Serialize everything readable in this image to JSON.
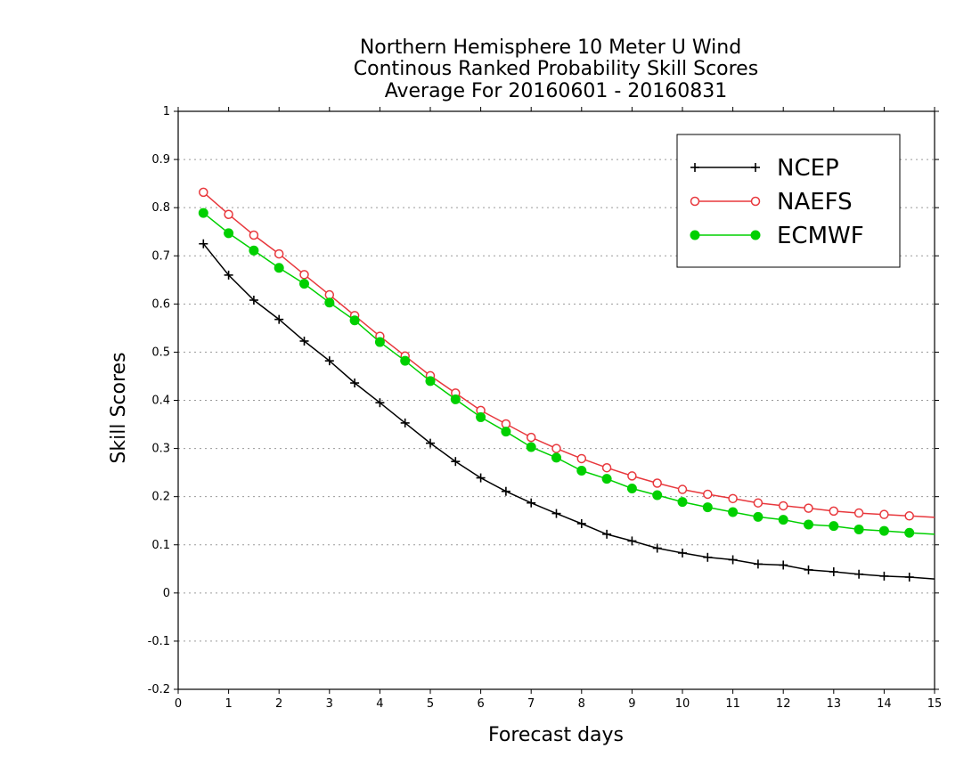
{
  "chart_data": {
    "type": "line",
    "title": [
      "Northern Hemisphere 10 Meter U Wind",
      "Continous Ranked Probability Skill Scores",
      "Average For 20160601 - 20160831"
    ],
    "xlabel": "Forecast days",
    "ylabel": "Skill Scores",
    "xlim": [
      0,
      15
    ],
    "ylim": [
      -0.2,
      1
    ],
    "xticks": [
      0,
      1,
      2,
      3,
      4,
      5,
      6,
      7,
      8,
      9,
      10,
      11,
      12,
      13,
      14,
      15
    ],
    "xtick_labels": [
      "0",
      "1",
      "2",
      "3",
      "4",
      "5",
      "6",
      "7",
      "8",
      "9",
      "10",
      "11",
      "12",
      "13",
      "14",
      "15"
    ],
    "yticks": [
      -0.2,
      -0.1,
      0,
      0.1,
      0.2,
      0.3,
      0.4,
      0.5,
      0.6,
      0.7,
      0.8,
      0.9,
      1
    ],
    "ytick_labels": [
      "-0.2",
      "-0.1",
      "0",
      "0.1",
      "0.2",
      "0.3",
      "0.4",
      "0.5",
      "0.6",
      "0.7",
      "0.8",
      "0.9",
      "1"
    ],
    "grid": "horizontal dotted",
    "legend_position": "top-right",
    "x": [
      0.5,
      1,
      1.5,
      2,
      2.5,
      3,
      3.5,
      4,
      4.5,
      5,
      5.5,
      6,
      6.5,
      7,
      7.5,
      8,
      8.5,
      9,
      9.5,
      10,
      10.5,
      11,
      11.5,
      12,
      12.5,
      13,
      13.5,
      14,
      14.5,
      15
    ],
    "series": [
      {
        "name": "NCEP",
        "color": "#000000",
        "marker": "plus",
        "values": [
          0.725,
          0.66,
          0.608,
          0.568,
          0.523,
          0.482,
          0.436,
          0.395,
          0.353,
          0.311,
          0.273,
          0.239,
          0.211,
          0.187,
          0.165,
          0.144,
          0.122,
          0.108,
          0.093,
          0.083,
          0.074,
          0.069,
          0.06,
          0.058,
          0.048,
          0.044,
          0.039,
          0.035,
          0.033,
          0.029
        ]
      },
      {
        "name": "NAEFS",
        "color": "#e8383d",
        "marker": "open-circle",
        "values": [
          0.832,
          0.786,
          0.743,
          0.704,
          0.661,
          0.619,
          0.576,
          0.533,
          0.492,
          0.451,
          0.415,
          0.379,
          0.351,
          0.323,
          0.3,
          0.279,
          0.26,
          0.243,
          0.228,
          0.215,
          0.205,
          0.196,
          0.187,
          0.181,
          0.176,
          0.17,
          0.166,
          0.163,
          0.16,
          0.157
        ]
      },
      {
        "name": "ECMWF",
        "color": "#00d000",
        "marker": "filled-circle",
        "values": [
          0.789,
          0.747,
          0.711,
          0.675,
          0.642,
          0.603,
          0.566,
          0.521,
          0.482,
          0.44,
          0.402,
          0.365,
          0.335,
          0.303,
          0.281,
          0.254,
          0.237,
          0.217,
          0.203,
          0.189,
          0.178,
          0.168,
          0.158,
          0.152,
          0.142,
          0.139,
          0.132,
          0.129,
          0.125,
          0.122
        ]
      }
    ]
  }
}
